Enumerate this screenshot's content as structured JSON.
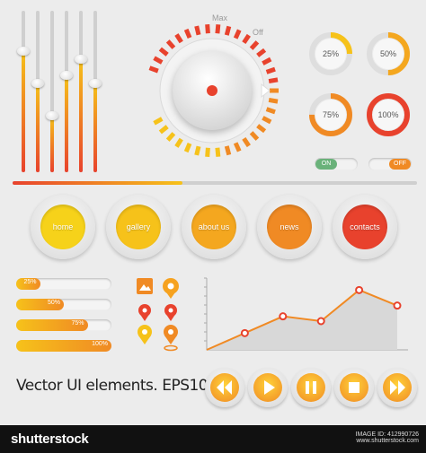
{
  "colors": {
    "accent_red": "#e8422d",
    "accent_orange": "#f08a24",
    "accent_yellow": "#f6c21a",
    "bg": "#ececec"
  },
  "sliders": [
    {
      "level": 0.25
    },
    {
      "level": 0.45
    },
    {
      "level": 0.65
    },
    {
      "level": 0.4
    },
    {
      "level": 0.3
    },
    {
      "level": 0.45
    }
  ],
  "knob": {
    "max_label": "Max",
    "off_label": "Off"
  },
  "gauges": [
    {
      "label": "25%",
      "value": 25
    },
    {
      "label": "50%",
      "value": 50
    },
    {
      "label": "75%",
      "value": 75
    },
    {
      "label": "100%",
      "value": 100
    }
  ],
  "toggles": {
    "on_label": "ON",
    "off_label": "OFF"
  },
  "progress_line": {
    "level": 0.42
  },
  "nav": [
    {
      "label": "home",
      "color": "#f6d21a"
    },
    {
      "label": "gallery",
      "color": "#f6c21a"
    },
    {
      "label": "about us",
      "color": "#f4a71f"
    },
    {
      "label": "news",
      "color": "#f08a24"
    },
    {
      "label": "contacts",
      "color": "#e8422d"
    }
  ],
  "pct_bars": [
    {
      "label": "25%",
      "value": 25
    },
    {
      "label": "50%",
      "value": 50
    },
    {
      "label": "75%",
      "value": 75
    },
    {
      "label": "100%",
      "value": 100
    }
  ],
  "caption": "Vector UI elements. EPS10",
  "chart_data": {
    "type": "area",
    "x": [
      1,
      2,
      3,
      4,
      5,
      6
    ],
    "values": [
      0,
      14,
      28,
      24,
      50,
      37
    ],
    "ylim": [
      0,
      60
    ]
  },
  "media_icons": [
    "rewind-icon",
    "play-icon",
    "pause-icon",
    "stop-icon",
    "fast-forward-icon"
  ],
  "footer": {
    "brand": "shutterstock",
    "image_id": "IMAGE ID: 412990726",
    "site": "www.shutterstock.com"
  }
}
